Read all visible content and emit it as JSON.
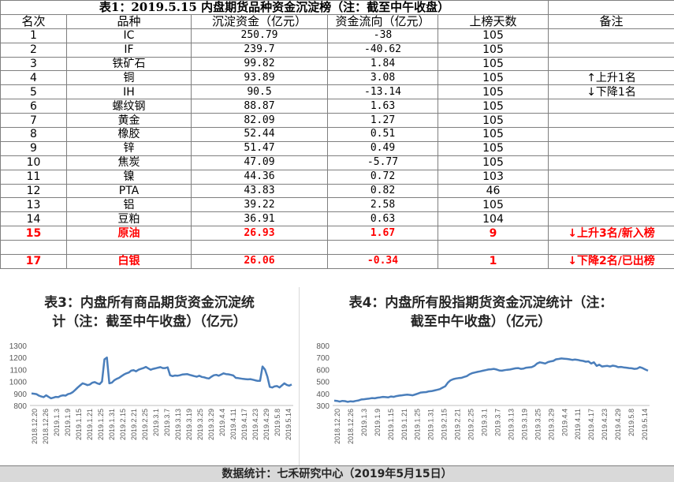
{
  "table": {
    "title": "表1：2019.5.15 内盘期货品种资金沉淀榜（注：截至中午收盘）",
    "headers": [
      "名次",
      "品种",
      "沉淀资金（亿元）",
      "资金流向（亿元）",
      "上榜天数",
      "备注"
    ],
    "rows": [
      {
        "rank": "1",
        "name": "IC",
        "fund": "250.79",
        "flow": "-38",
        "days": "105",
        "note": ""
      },
      {
        "rank": "2",
        "name": "IF",
        "fund": "239.7",
        "flow": "-40.62",
        "days": "105",
        "note": ""
      },
      {
        "rank": "3",
        "name": "铁矿石",
        "fund": "99.82",
        "flow": "1.84",
        "days": "105",
        "note": ""
      },
      {
        "rank": "4",
        "name": "铜",
        "fund": "93.89",
        "flow": "3.08",
        "days": "105",
        "note": "↑上升1名"
      },
      {
        "rank": "5",
        "name": "IH",
        "fund": "90.5",
        "flow": "-13.14",
        "days": "105",
        "note": "↓下降1名"
      },
      {
        "rank": "6",
        "name": "螺纹钢",
        "fund": "88.87",
        "flow": "1.63",
        "days": "105",
        "note": ""
      },
      {
        "rank": "7",
        "name": "黄金",
        "fund": "82.09",
        "flow": "1.27",
        "days": "105",
        "note": ""
      },
      {
        "rank": "8",
        "name": "橡胶",
        "fund": "52.44",
        "flow": "0.51",
        "days": "105",
        "note": ""
      },
      {
        "rank": "9",
        "name": "锌",
        "fund": "51.47",
        "flow": "0.49",
        "days": "105",
        "note": ""
      },
      {
        "rank": "10",
        "name": "焦炭",
        "fund": "47.09",
        "flow": "-5.77",
        "days": "105",
        "note": ""
      },
      {
        "rank": "11",
        "name": "镍",
        "fund": "44.36",
        "flow": "0.72",
        "days": "103",
        "note": ""
      },
      {
        "rank": "12",
        "name": "PTA",
        "fund": "43.83",
        "flow": "0.82",
        "days": "46",
        "note": ""
      },
      {
        "rank": "13",
        "name": "铝",
        "fund": "39.22",
        "flow": "2.58",
        "days": "105",
        "note": ""
      },
      {
        "rank": "14",
        "name": "豆粕",
        "fund": "36.91",
        "flow": "0.63",
        "days": "104",
        "note": ""
      },
      {
        "rank": "15",
        "name": "原油",
        "fund": "26.93",
        "flow": "1.67",
        "days": "9",
        "note": "↓上升3名/新入榜"
      },
      {
        "rank": "",
        "name": "",
        "fund": "",
        "flow": "",
        "days": "",
        "note": ""
      },
      {
        "rank": "17",
        "name": "白银",
        "fund": "26.06",
        "flow": "-0.34",
        "days": "1",
        "note": "↓下降2名/已出榜"
      }
    ]
  },
  "chart_data": [
    {
      "type": "line",
      "title": "表3：内盘所有商品期货资金沉淀统计（注：截至中午收盘）（亿元）",
      "title_lines": [
        "表3：内盘所有商品期货资金沉淀统",
        "计（注：截至中午收盘）（亿元）"
      ],
      "ylim": [
        800,
        1300
      ],
      "yticks": [
        800,
        900,
        1000,
        1100,
        1200,
        1300
      ],
      "xticks": [
        "2018.12.20",
        "2018.12.26",
        "2019.1.3",
        "2019.1.9",
        "2019.1.15",
        "2019.1.21",
        "2019.1.25",
        "2019.1.31",
        "2019.2.15",
        "2019.2.21",
        "2019.2.25",
        "2019.3.1",
        "2019.3.7",
        "2019.3.13",
        "2019.3.19",
        "2019.3.25",
        "2019.3.29",
        "2019.4.4",
        "2019.4.11",
        "2019.4.17",
        "2019.4.23",
        "2019.4.29",
        "2019.5.8",
        "2019.5.14"
      ],
      "series_color": "#4a7ebb",
      "grid": false,
      "values": [
        900,
        898,
        895,
        882,
        875,
        870,
        885,
        872,
        860,
        865,
        872,
        870,
        880,
        885,
        882,
        895,
        900,
        912,
        930,
        950,
        968,
        985,
        978,
        970,
        975,
        990,
        995,
        985,
        978,
        1000,
        1185,
        1200,
        985,
        990,
        1010,
        1022,
        1030,
        1045,
        1058,
        1068,
        1075,
        1090,
        1095,
        1085,
        1098,
        1105,
        1112,
        1122,
        1110,
        1098,
        1105,
        1110,
        1115,
        1120,
        1112,
        1112,
        1118,
        1052,
        1045,
        1050,
        1048,
        1052,
        1058,
        1060,
        1062,
        1055,
        1050,
        1045,
        1040,
        1048,
        1038,
        1035,
        1028,
        1025,
        1040,
        1052,
        1055,
        1048,
        1058,
        1068,
        1062,
        1060,
        1055,
        1050,
        1030,
        1028,
        1025,
        1022,
        1020,
        1018,
        1020,
        1015,
        1010,
        1005,
        1005,
        1125,
        1100,
        1040,
        955,
        950,
        960,
        962,
        950,
        968,
        985,
        972,
        965,
        975
      ]
    },
    {
      "type": "line",
      "title": "表4：内盘所有股指期货资金沉淀统计（注：截至中午收盘）（亿元）",
      "title_lines": [
        "表4：内盘所有股指期货资金沉淀统计（注：",
        "截至中午收盘）（亿元）"
      ],
      "ylim": [
        300,
        800
      ],
      "yticks": [
        300,
        400,
        500,
        600,
        700,
        800
      ],
      "xticks": [
        "2018.12.20",
        "2018.12.26",
        "2019.1.3",
        "2019.1.9",
        "2019.1.15",
        "2019.1.21",
        "2019.1.25",
        "2019.1.31",
        "2019.2.15",
        "2019.2.21",
        "2019.2.25",
        "2019.3.1",
        "2019.3.7",
        "2019.3.13",
        "2019.3.19",
        "2019.3.25",
        "2019.3.29",
        "2019.4.4",
        "2019.4.11",
        "2019.4.17",
        "2019.4.23",
        "2019.4.29",
        "2019.5.8",
        "2019.5.14"
      ],
      "series_color": "#4a7ebb",
      "grid": false,
      "values": [
        340,
        338,
        332,
        338,
        336,
        330,
        335,
        333,
        338,
        342,
        350,
        352,
        355,
        358,
        362,
        360,
        365,
        368,
        372,
        370,
        368,
        375,
        372,
        378,
        382,
        385,
        388,
        390,
        388,
        385,
        392,
        400,
        408,
        410,
        412,
        418,
        420,
        425,
        430,
        436,
        448,
        460,
        490,
        510,
        520,
        525,
        528,
        530,
        538,
        545,
        560,
        570,
        575,
        580,
        585,
        590,
        595,
        600,
        602,
        605,
        600,
        592,
        590,
        595,
        598,
        600,
        605,
        610,
        612,
        605,
        608,
        615,
        618,
        620,
        630,
        650,
        660,
        655,
        650,
        662,
        668,
        672,
        685,
        688,
        692,
        690,
        688,
        685,
        680,
        683,
        680,
        675,
        672,
        665,
        668,
        650,
        660,
        630,
        640,
        625,
        628,
        630,
        625,
        632,
        628,
        620,
        622,
        618,
        615,
        612,
        610,
        605,
        608,
        620,
        612,
        600,
        590
      ]
    }
  ],
  "footer": "数据统计：七禾研究中心（2019年5月15日）"
}
